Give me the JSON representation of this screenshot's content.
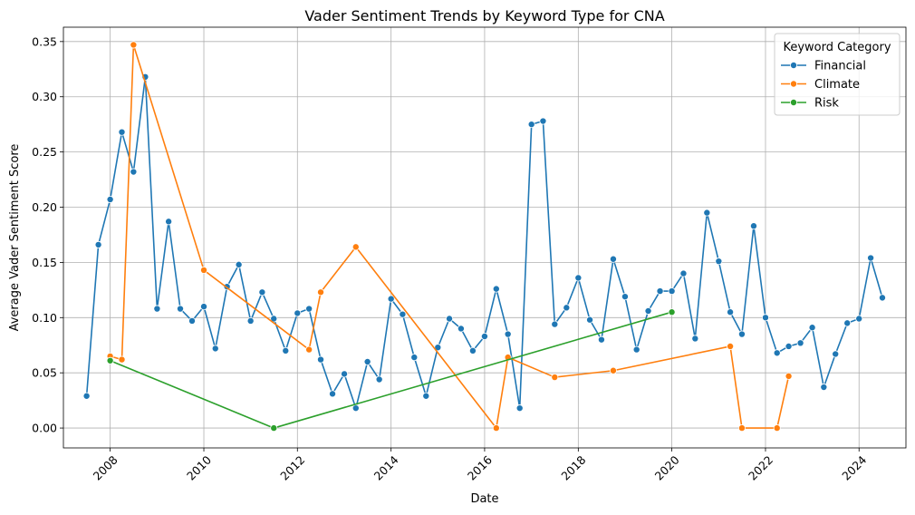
{
  "chart_data": {
    "type": "line",
    "title": "Vader Sentiment Trends by Keyword Type for CNA",
    "xlabel": "Date",
    "ylabel": "Average Vader Sentiment Score",
    "xlim": [
      "2007-01-01",
      "2025-01-01"
    ],
    "ylim": [
      -0.018,
      0.363
    ],
    "x_ticks": [
      "2008",
      "2010",
      "2012",
      "2014",
      "2016",
      "2018",
      "2020",
      "2022",
      "2024"
    ],
    "y_ticks": [
      "0.00",
      "0.05",
      "0.10",
      "0.15",
      "0.20",
      "0.25",
      "0.30",
      "0.35"
    ],
    "grid": true,
    "legend": {
      "title": "Keyword Category",
      "position": "top-right"
    },
    "series": [
      {
        "name": "Financial",
        "color": "#1f77b4",
        "points": [
          [
            "2007-07-01",
            0.029
          ],
          [
            "2007-10-01",
            0.166
          ],
          [
            "2008-01-01",
            0.207
          ],
          [
            "2008-04-01",
            0.268
          ],
          [
            "2008-07-01",
            0.232
          ],
          [
            "2008-10-01",
            0.318
          ],
          [
            "2009-01-01",
            0.108
          ],
          [
            "2009-04-01",
            0.187
          ],
          [
            "2009-07-01",
            0.108
          ],
          [
            "2009-10-01",
            0.097
          ],
          [
            "2010-01-01",
            0.11
          ],
          [
            "2010-04-01",
            0.072
          ],
          [
            "2010-07-01",
            0.128
          ],
          [
            "2010-10-01",
            0.148
          ],
          [
            "2011-01-01",
            0.097
          ],
          [
            "2011-04-01",
            0.123
          ],
          [
            "2011-07-01",
            0.099
          ],
          [
            "2011-10-01",
            0.07
          ],
          [
            "2012-01-01",
            0.104
          ],
          [
            "2012-04-01",
            0.108
          ],
          [
            "2012-07-01",
            0.062
          ],
          [
            "2012-10-01",
            0.031
          ],
          [
            "2013-01-01",
            0.049
          ],
          [
            "2013-04-01",
            0.018
          ],
          [
            "2013-07-01",
            0.06
          ],
          [
            "2013-10-01",
            0.044
          ],
          [
            "2014-01-01",
            0.117
          ],
          [
            "2014-04-01",
            0.103
          ],
          [
            "2014-07-01",
            0.064
          ],
          [
            "2014-10-01",
            0.029
          ],
          [
            "2015-01-01",
            0.073
          ],
          [
            "2015-04-01",
            0.099
          ],
          [
            "2015-07-01",
            0.09
          ],
          [
            "2015-10-01",
            0.07
          ],
          [
            "2016-01-01",
            0.083
          ],
          [
            "2016-04-01",
            0.126
          ],
          [
            "2016-07-01",
            0.085
          ],
          [
            "2016-10-01",
            0.018
          ],
          [
            "2017-01-01",
            0.275
          ],
          [
            "2017-04-01",
            0.278
          ],
          [
            "2017-07-01",
            0.094
          ],
          [
            "2017-10-01",
            0.109
          ],
          [
            "2018-01-01",
            0.136
          ],
          [
            "2018-04-01",
            0.098
          ],
          [
            "2018-07-01",
            0.08
          ],
          [
            "2018-10-01",
            0.153
          ],
          [
            "2019-01-01",
            0.119
          ],
          [
            "2019-04-01",
            0.071
          ],
          [
            "2019-07-01",
            0.106
          ],
          [
            "2019-10-01",
            0.124
          ],
          [
            "2020-01-01",
            0.124
          ],
          [
            "2020-04-01",
            0.14
          ],
          [
            "2020-07-01",
            0.081
          ],
          [
            "2020-10-01",
            0.195
          ],
          [
            "2021-01-01",
            0.151
          ],
          [
            "2021-04-01",
            0.105
          ],
          [
            "2021-07-01",
            0.085
          ],
          [
            "2021-10-01",
            0.183
          ],
          [
            "2022-01-01",
            0.1
          ],
          [
            "2022-04-01",
            0.068
          ],
          [
            "2022-07-01",
            0.074
          ],
          [
            "2022-10-01",
            0.077
          ],
          [
            "2023-01-01",
            0.091
          ],
          [
            "2023-04-01",
            0.037
          ],
          [
            "2023-07-01",
            0.067
          ],
          [
            "2023-10-01",
            0.095
          ],
          [
            "2024-01-01",
            0.099
          ],
          [
            "2024-04-01",
            0.154
          ],
          [
            "2024-07-01",
            0.118
          ]
        ]
      },
      {
        "name": "Climate",
        "color": "#ff7f0e",
        "points": [
          [
            "2008-01-01",
            0.065
          ],
          [
            "2008-04-01",
            0.062
          ],
          [
            "2008-07-01",
            0.347
          ],
          [
            "2010-01-01",
            0.143
          ],
          [
            "2012-04-01",
            0.071
          ],
          [
            "2012-07-01",
            0.123
          ],
          [
            "2013-04-01",
            0.164
          ],
          [
            "2016-04-01",
            0.0
          ],
          [
            "2016-07-01",
            0.064
          ],
          [
            "2017-07-01",
            0.046
          ],
          [
            "2018-10-01",
            0.052
          ],
          [
            "2021-04-01",
            0.074
          ],
          [
            "2021-07-01",
            0.0
          ],
          [
            "2022-04-01",
            0.0
          ],
          [
            "2022-07-01",
            0.047
          ]
        ]
      },
      {
        "name": "Risk",
        "color": "#2ca02c",
        "points": [
          [
            "2008-01-01",
            0.061
          ],
          [
            "2011-07-01",
            0.0
          ],
          [
            "2020-01-01",
            0.105
          ]
        ]
      }
    ]
  }
}
